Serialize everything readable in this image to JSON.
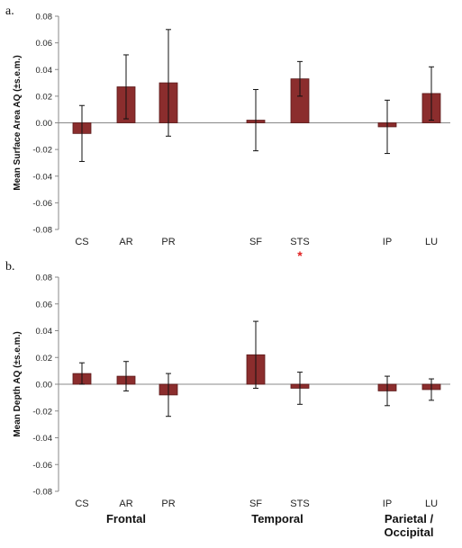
{
  "chart_data": [
    {
      "type": "bar",
      "panel_label": "a.",
      "ylabel": "Mean Surface Area AQ (±s.e.m.)",
      "ylim": [
        -0.08,
        0.08
      ],
      "yticks": [
        "0.08",
        "0.06",
        "0.04",
        "0.02",
        "0.00",
        "-0.02",
        "-0.04",
        "-0.06",
        "-0.08"
      ],
      "categories": [
        "CS",
        "AR",
        "PR",
        "SF",
        "STS",
        "IP",
        "LU"
      ],
      "values": [
        -0.008,
        0.027,
        0.03,
        0.002,
        0.033,
        -0.003,
        0.022
      ],
      "errors": [
        0.021,
        0.024,
        0.04,
        0.023,
        0.013,
        0.02,
        0.02
      ],
      "significance": [
        {
          "category": "STS",
          "marker": "*"
        }
      ],
      "grid": false
    },
    {
      "type": "bar",
      "panel_label": "b.",
      "ylabel": "Mean Depth AQ (±s.e.m.)",
      "ylim": [
        -0.08,
        0.08
      ],
      "yticks": [
        "0.08",
        "0.06",
        "0.04",
        "0.02",
        "0.00",
        "-0.02",
        "-0.04",
        "-0.06",
        "-0.08"
      ],
      "categories": [
        "CS",
        "AR",
        "PR",
        "SF",
        "STS",
        "IP",
        "LU"
      ],
      "values": [
        0.008,
        0.006,
        -0.008,
        0.022,
        -0.003,
        -0.005,
        -0.004
      ],
      "errors": [
        0.008,
        0.011,
        0.016,
        0.025,
        0.012,
        0.011,
        0.008
      ],
      "grid": false
    }
  ],
  "groups": [
    "Frontal",
    "Temporal",
    "Parietal  /\nOccipital"
  ],
  "colors": {
    "bar_fill": "#8b2d2d",
    "bar_stroke": "#5a1a1a",
    "significance": "#e02020"
  }
}
